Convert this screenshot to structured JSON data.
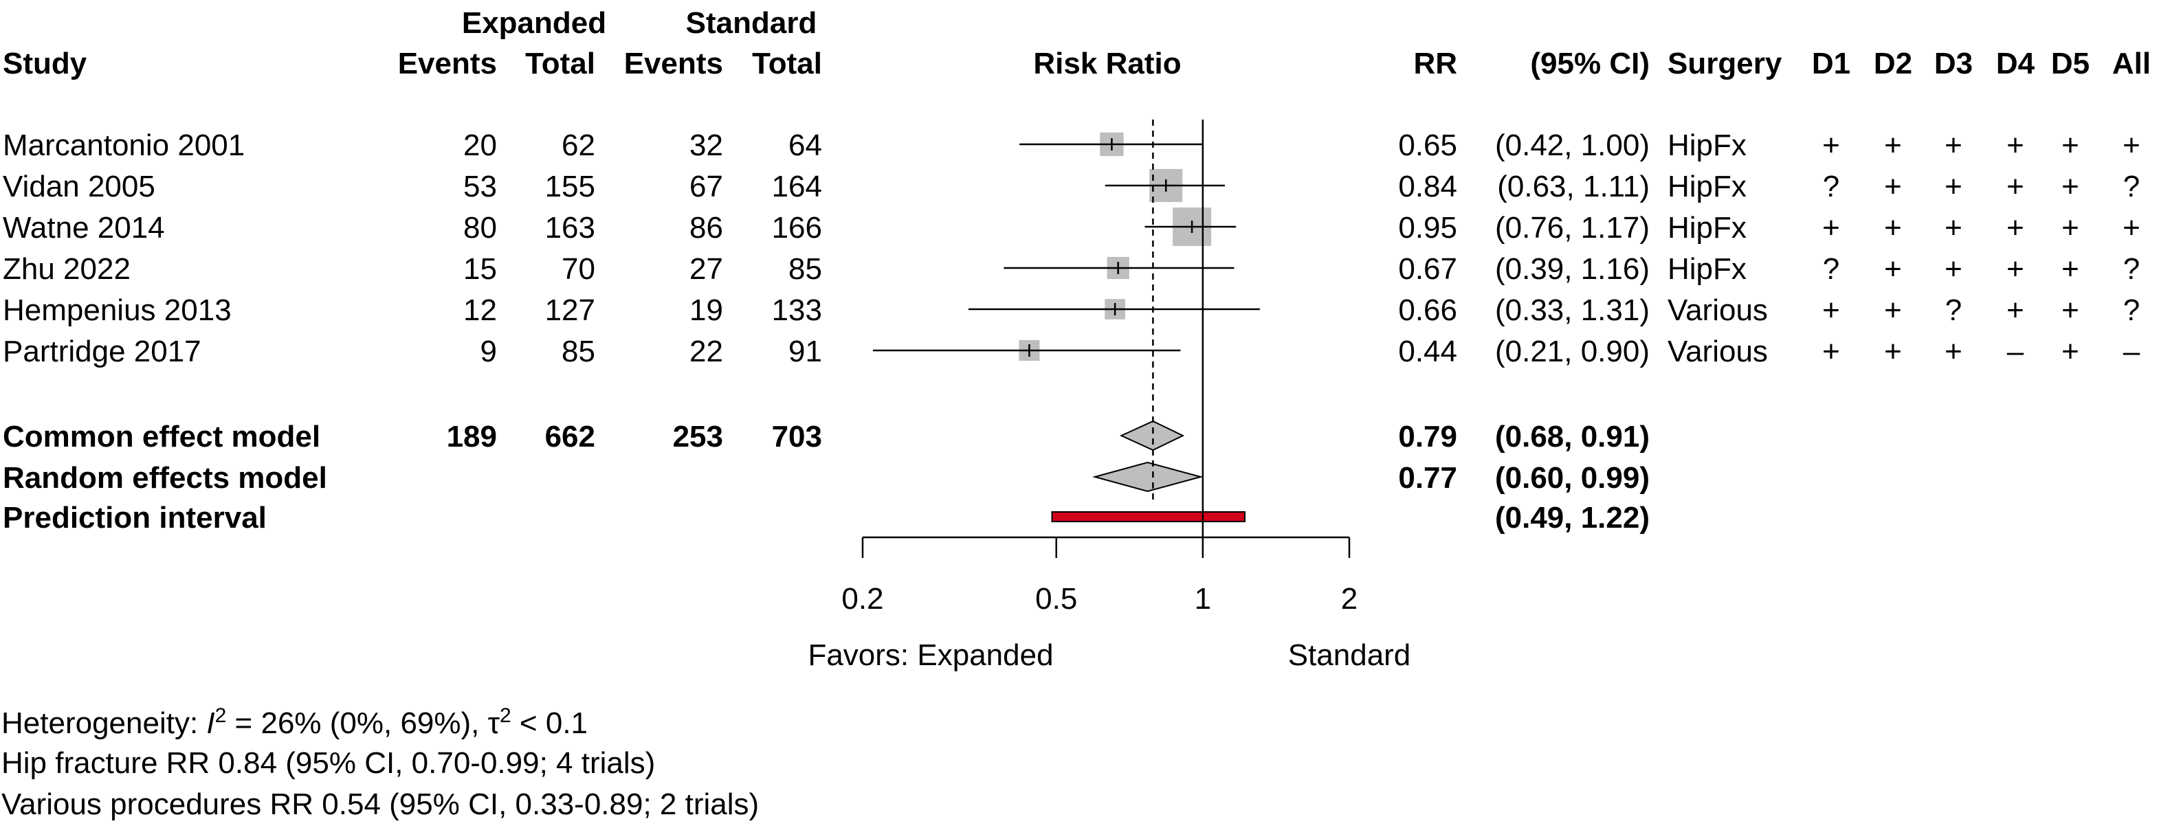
{
  "chart_data": {
    "type": "forest",
    "measure": "Risk Ratio",
    "x_scale": "log",
    "xlim": [
      0.2,
      2
    ],
    "x_ticks": [
      {
        "value": 0.2,
        "label": "0.2"
      },
      {
        "value": 0.5,
        "label": "0.5"
      },
      {
        "value": 1,
        "label": "1"
      },
      {
        "value": 2,
        "label": "2"
      }
    ],
    "null_line": 1,
    "common_effect_line": 0.79,
    "favors_left": "Favors: Expanded",
    "favors_right": "Standard",
    "headers": {
      "study": "Study",
      "expanded": "Expanded",
      "standard": "Standard",
      "events": "Events",
      "total": "Total",
      "plot": "Risk Ratio",
      "rr": "RR",
      "ci": "(95% CI)",
      "surgery": "Surgery",
      "d1": "D1",
      "d2": "D2",
      "d3": "D3",
      "d4": "D4",
      "d5": "D5",
      "all": "All"
    },
    "studies": [
      {
        "study": "Marcantonio 2001",
        "exp_events": "20",
        "exp_total": "62",
        "std_events": "32",
        "std_total": "64",
        "rr": 0.65,
        "lower": 0.42,
        "upper": 1.0,
        "rr_text": "0.65",
        "ci_text": "(0.42, 1.00)",
        "surgery": "HipFx",
        "weight": 0.4,
        "risk": [
          "+",
          "+",
          "+",
          "+",
          "+",
          "+"
        ]
      },
      {
        "study": "Vidan 2005",
        "exp_events": "53",
        "exp_total": "155",
        "std_events": "67",
        "std_total": "164",
        "rr": 0.84,
        "lower": 0.63,
        "upper": 1.11,
        "rr_text": "0.84",
        "ci_text": "(0.63, 1.11)",
        "surgery": "HipFx",
        "weight": 0.78,
        "risk": [
          "?",
          "+",
          "+",
          "+",
          "+",
          "?"
        ]
      },
      {
        "study": "Watne 2014",
        "exp_events": "80",
        "exp_total": "163",
        "std_events": "86",
        "std_total": "166",
        "rr": 0.95,
        "lower": 0.76,
        "upper": 1.17,
        "rr_text": "0.95",
        "ci_text": "(0.76, 1.17)",
        "surgery": "HipFx",
        "weight": 1.0,
        "risk": [
          "+",
          "+",
          "+",
          "+",
          "+",
          "+"
        ]
      },
      {
        "study": "Zhu 2022",
        "exp_events": "15",
        "exp_total": "70",
        "std_events": "27",
        "std_total": "85",
        "rr": 0.67,
        "lower": 0.39,
        "upper": 1.16,
        "rr_text": "0.67",
        "ci_text": "(0.39, 1.16)",
        "surgery": "HipFx",
        "weight": 0.34,
        "risk": [
          "?",
          "+",
          "+",
          "+",
          "+",
          "?"
        ]
      },
      {
        "study": "Hempenius 2013",
        "exp_events": "12",
        "exp_total": "127",
        "std_events": "19",
        "std_total": "133",
        "rr": 0.66,
        "lower": 0.33,
        "upper": 1.31,
        "rr_text": "0.66",
        "ci_text": "(0.33, 1.31)",
        "surgery": "Various",
        "weight": 0.27,
        "risk": [
          "+",
          "+",
          "?",
          "+",
          "+",
          "?"
        ]
      },
      {
        "study": "Partridge 2017",
        "exp_events": "9",
        "exp_total": "85",
        "std_events": "22",
        "std_total": "91",
        "rr": 0.44,
        "lower": 0.21,
        "upper": 0.9,
        "rr_text": "0.44",
        "ci_text": "(0.21, 0.90)",
        "surgery": "Various",
        "weight": 0.28,
        "risk": [
          "+",
          "+",
          "+",
          "–",
          "+",
          "–"
        ]
      }
    ],
    "pooled": [
      {
        "label": "Common effect model",
        "exp_events": "189",
        "exp_total": "662",
        "std_events": "253",
        "std_total": "703",
        "rr": 0.79,
        "lower": 0.68,
        "upper": 0.91,
        "rr_text": "0.79",
        "ci_text": "(0.68, 0.91)"
      },
      {
        "label": "Random effects model",
        "exp_events": "",
        "exp_total": "",
        "std_events": "",
        "std_total": "",
        "rr": 0.77,
        "lower": 0.6,
        "upper": 0.99,
        "rr_text": "0.77",
        "ci_text": "(0.60, 0.99)"
      }
    ],
    "prediction_interval": {
      "label": "Prediction interval",
      "lower": 0.49,
      "upper": 1.22,
      "ci_text": "(0.49, 1.22)"
    },
    "footnotes": {
      "heterogeneity_prefix": "Heterogeneity: ",
      "i2_symbol": "I",
      "i2_sup": "2",
      "i2_value": " = 26% (0%, 69%), ",
      "tau2_symbol": "τ",
      "tau2_sup": "2",
      "tau2_value": " < 0.1",
      "line2": "Hip fracture RR 0.84 (95% CI, 0.70-0.99; 4 trials)",
      "line3": "Various procedures RR 0.54 (95% CI, 0.33-0.89; 2 trials)"
    },
    "colors": {
      "square": "#bebebe",
      "diamond": "#bebebe",
      "prediction": "#d0021b",
      "ink": "#000000"
    }
  }
}
